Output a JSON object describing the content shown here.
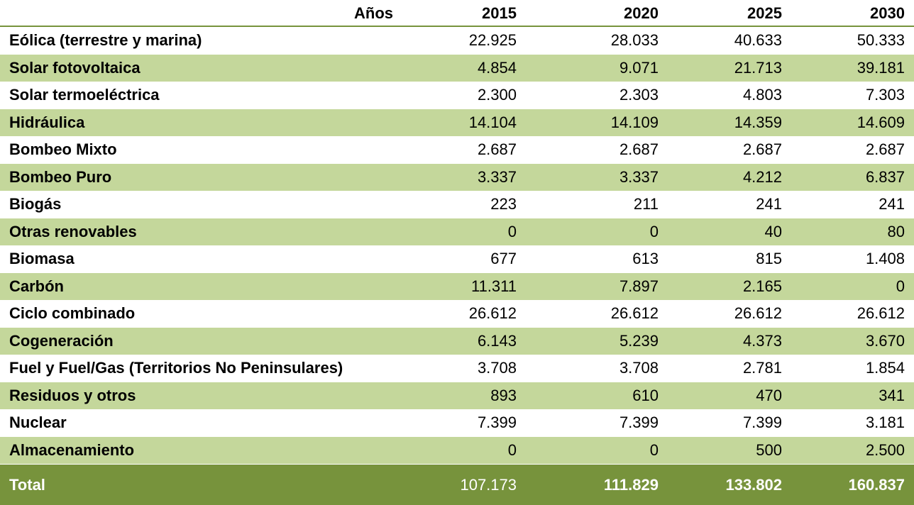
{
  "header": {
    "years_label": "Años",
    "years": [
      "2015",
      "2020",
      "2025",
      "2030"
    ]
  },
  "rows": [
    {
      "label": "Eólica (terrestre y marina)",
      "values": [
        "22.925",
        "28.033",
        "40.633",
        "50.333"
      ]
    },
    {
      "label": "Solar fotovoltaica",
      "values": [
        "4.854",
        "9.071",
        "21.713",
        "39.181"
      ]
    },
    {
      "label": "Solar termoeléctrica",
      "values": [
        "2.300",
        "2.303",
        "4.803",
        "7.303"
      ]
    },
    {
      "label": "Hidráulica",
      "values": [
        "14.104",
        "14.109",
        "14.359",
        "14.609"
      ]
    },
    {
      "label": "Bombeo Mixto",
      "values": [
        "2.687",
        "2.687",
        "2.687",
        "2.687"
      ]
    },
    {
      "label": "Bombeo Puro",
      "values": [
        "3.337",
        "3.337",
        "4.212",
        "6.837"
      ]
    },
    {
      "label": "Biogás",
      "values": [
        "223",
        "211",
        "241",
        "241"
      ]
    },
    {
      "label": "Otras renovables",
      "values": [
        "0",
        "0",
        "40",
        "80"
      ]
    },
    {
      "label": "Biomasa",
      "values": [
        "677",
        "613",
        "815",
        "1.408"
      ]
    },
    {
      "label": "Carbón",
      "values": [
        "11.311",
        "7.897",
        "2.165",
        "0"
      ]
    },
    {
      "label": "Ciclo combinado",
      "values": [
        "26.612",
        "26.612",
        "26.612",
        "26.612"
      ]
    },
    {
      "label": "Cogeneración",
      "values": [
        "6.143",
        "5.239",
        "4.373",
        "3.670"
      ]
    },
    {
      "label": "Fuel y Fuel/Gas (Territorios No Peninsulares)",
      "values": [
        "3.708",
        "3.708",
        "2.781",
        "1.854"
      ]
    },
    {
      "label": "Residuos y otros",
      "values": [
        "893",
        "610",
        "470",
        "341"
      ]
    },
    {
      "label": "Nuclear",
      "values": [
        "7.399",
        "7.399",
        "7.399",
        "3.181"
      ]
    },
    {
      "label": "Almacenamiento",
      "values": [
        "0",
        "0",
        "500",
        "2.500"
      ]
    }
  ],
  "total": {
    "label": "Total",
    "values": [
      "107.173",
      "111.829",
      "133.802",
      "160.837"
    ]
  },
  "colors": {
    "band": "#c4d79b",
    "total_bg": "#77933c",
    "rule": "#77933c"
  }
}
